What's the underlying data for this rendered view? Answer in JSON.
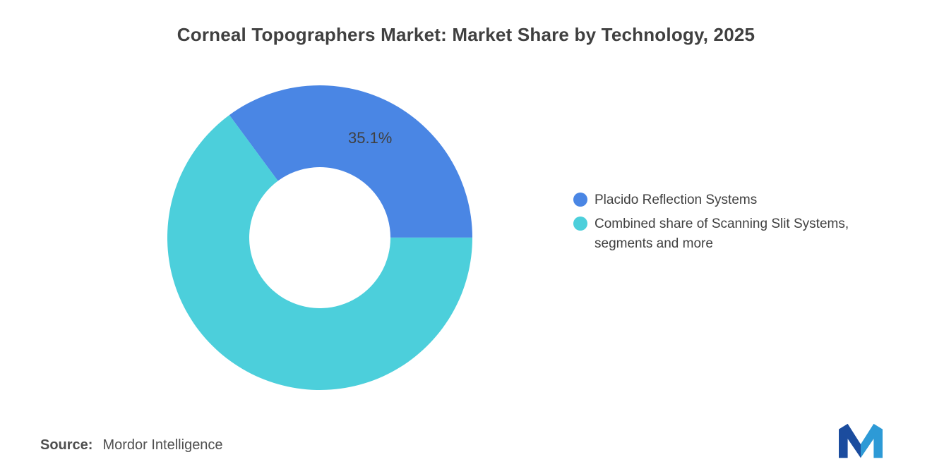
{
  "title": "Corneal Topographers Market: Market Share by Technology, 2025",
  "chart_data": {
    "type": "pie",
    "subtype": "donut",
    "title": "Corneal Topographers Market: Market Share by Technology, 2025",
    "categories": [
      "Placido Reflection Systems",
      "Combined share of Scanning Slit Systems, segments and more"
    ],
    "series": [
      {
        "name": "Placido Reflection Systems",
        "value": 35.1,
        "color": "#4A86E4",
        "data_label": "35.1%"
      },
      {
        "name": "Combined share of Scanning Slit Systems, segments and more",
        "value": 64.9,
        "color": "#4CCFDB",
        "data_label": ""
      }
    ],
    "rotation_deg": -36.4,
    "inner_radius_ratio": 0.463,
    "legend_position": "right",
    "data_label_color": "#404040",
    "background": "#FFFFFF"
  },
  "legend": {
    "items": [
      {
        "label": "Placido Reflection Systems",
        "color": "#4A86E4"
      },
      {
        "label": "Combined share of Scanning Slit Systems, segments and more",
        "color": "#4CCFDB"
      }
    ]
  },
  "source": {
    "label": "Source:",
    "value": "Mordor Intelligence"
  },
  "logo": {
    "name": "Mordor Intelligence logo",
    "colors": {
      "dark": "#1B4C9E",
      "light": "#2D9AD6"
    }
  }
}
